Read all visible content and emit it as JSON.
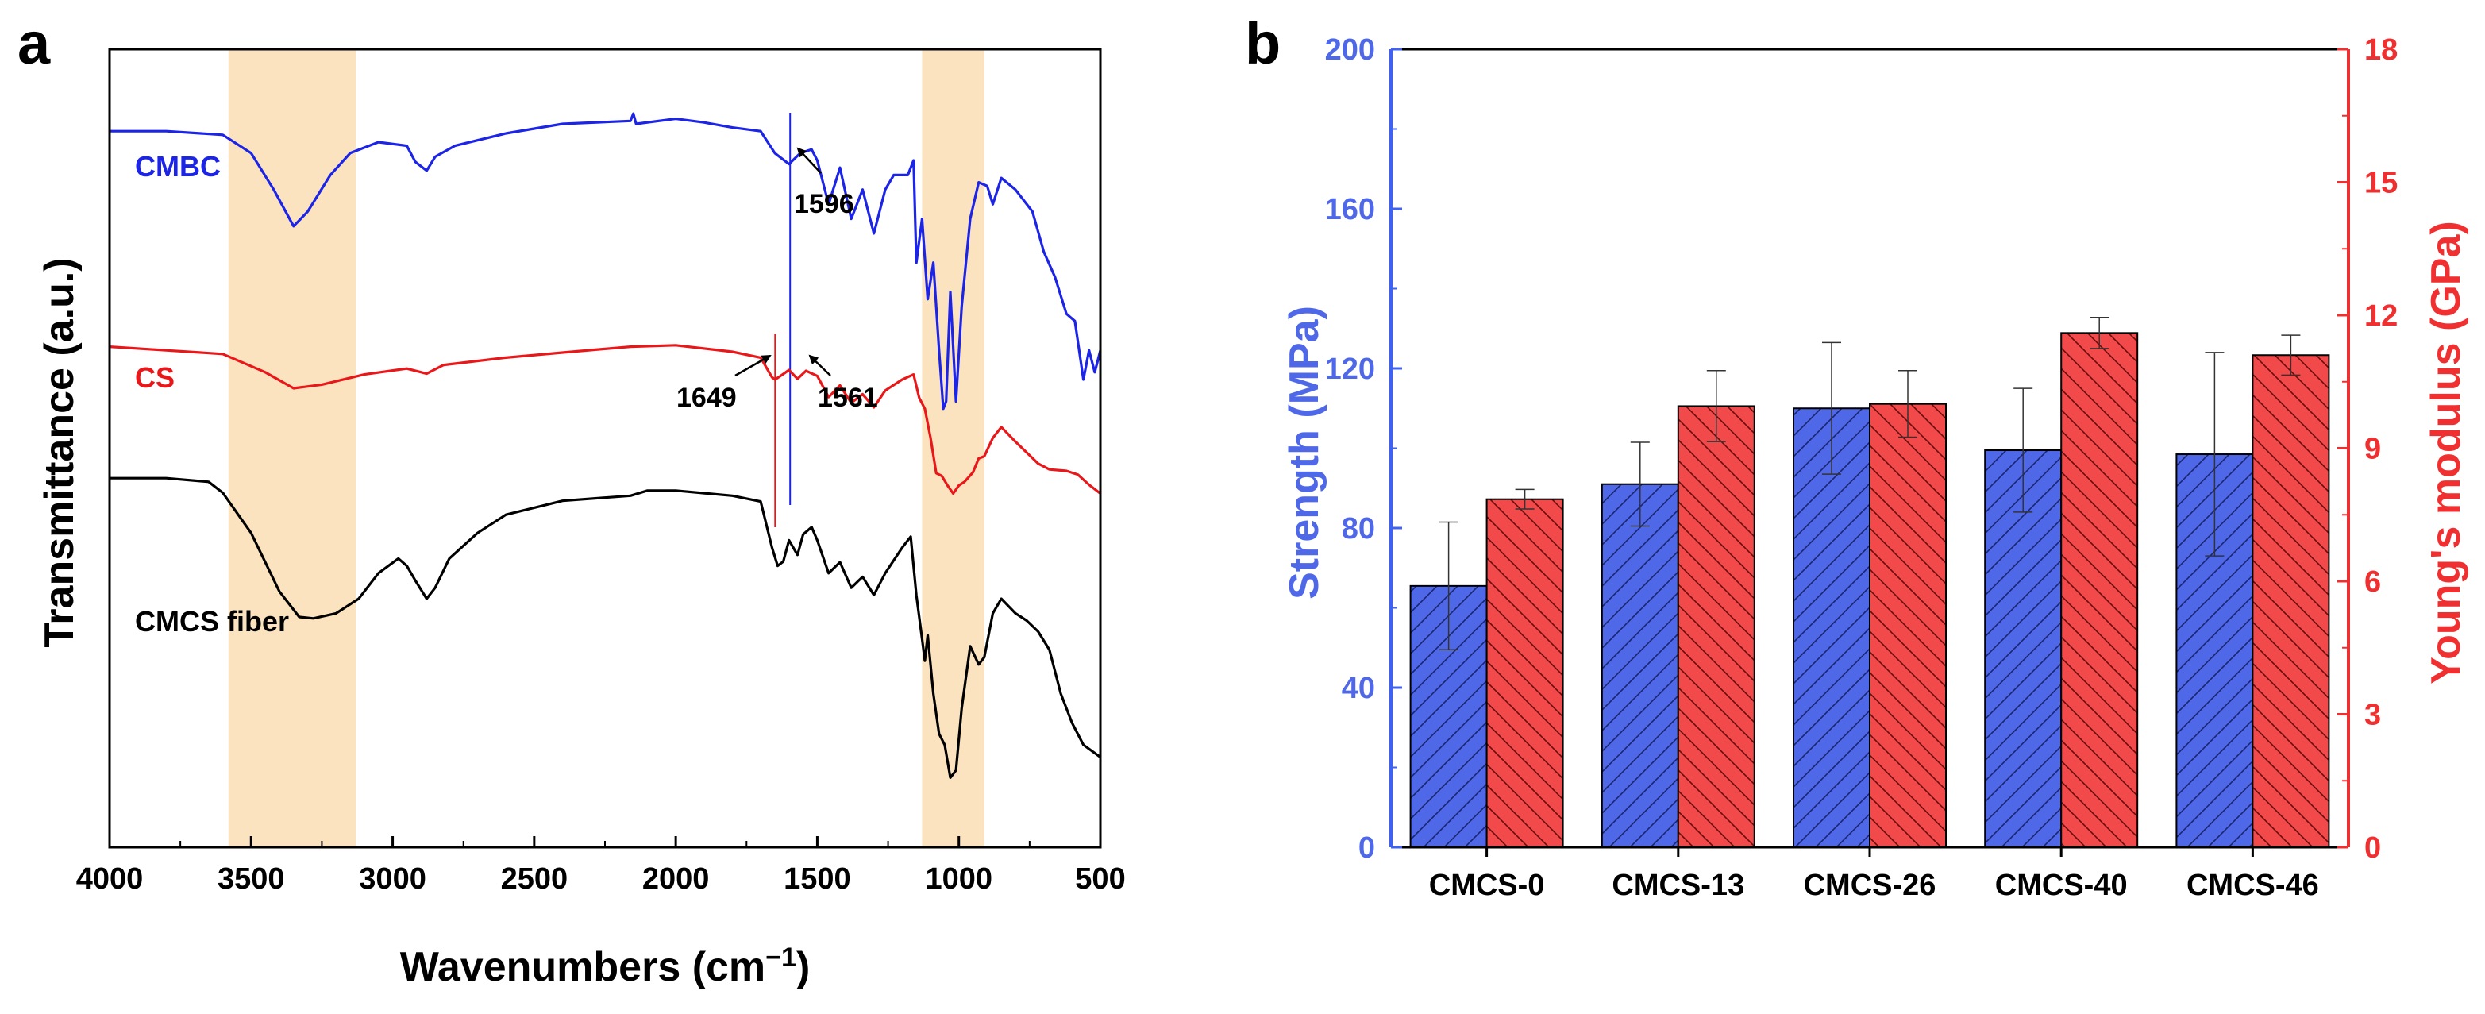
{
  "panels": {
    "a": "a",
    "b": "b"
  },
  "colors": {
    "blue_axis": "#3F63F0",
    "red_axis": "#F03030",
    "bar_blue": "#4F68E8",
    "bar_red": "#F24A4A",
    "band": "#FBE3BF",
    "line_cmbc": "#1C24E6",
    "line_cs": "#E8181A",
    "line_fiber": "#000000"
  },
  "chart_data": [
    {
      "type": "line",
      "title": "",
      "xlabel_main": "Wavenumbers (cm",
      "xlabel_sup": "−1",
      "xlabel_close": ")",
      "ylabel": "Transmittance (a.u.)",
      "xlim": [
        4000,
        500
      ],
      "x_ticks": [
        "4000",
        "3500",
        "3000",
        "2500",
        "2000",
        "1500",
        "1000",
        "500"
      ],
      "shaded_bands": [
        [
          3580,
          3130
        ],
        [
          1130,
          910
        ]
      ],
      "series": [
        {
          "name": "CMBC",
          "color": "#1C24E6",
          "points": [
            [
              4000,
              94
            ],
            [
              3800,
              94
            ],
            [
              3600,
              93.5
            ],
            [
              3500,
              91
            ],
            [
              3420,
              86
            ],
            [
              3350,
              81
            ],
            [
              3300,
              83
            ],
            [
              3220,
              88
            ],
            [
              3150,
              91
            ],
            [
              3050,
              92.5
            ],
            [
              2950,
              92
            ],
            [
              2920,
              89.8
            ],
            [
              2880,
              88.6
            ],
            [
              2850,
              90.5
            ],
            [
              2780,
              92
            ],
            [
              2600,
              93.7
            ],
            [
              2400,
              95
            ],
            [
              2160,
              95.4
            ],
            [
              2150,
              96.4
            ],
            [
              2140,
              95
            ],
            [
              2000,
              95.7
            ],
            [
              1900,
              95.2
            ],
            [
              1800,
              94.5
            ],
            [
              1700,
              94
            ],
            [
              1650,
              91
            ],
            [
              1600,
              89.5
            ],
            [
              1560,
              91
            ],
            [
              1520,
              91.5
            ],
            [
              1500,
              90
            ],
            [
              1460,
              84
            ],
            [
              1420,
              89
            ],
            [
              1380,
              82
            ],
            [
              1340,
              86
            ],
            [
              1300,
              80
            ],
            [
              1260,
              86
            ],
            [
              1230,
              88
            ],
            [
              1180,
              88
            ],
            [
              1160,
              90
            ],
            [
              1150,
              76
            ],
            [
              1130,
              82
            ],
            [
              1110,
              71
            ],
            [
              1090,
              76
            ],
            [
              1070,
              64
            ],
            [
              1055,
              56
            ],
            [
              1045,
              57
            ],
            [
              1030,
              72
            ],
            [
              1010,
              57
            ],
            [
              990,
              70
            ],
            [
              960,
              82
            ],
            [
              930,
              87
            ],
            [
              900,
              86.5
            ],
            [
              880,
              84
            ],
            [
              850,
              87.6
            ],
            [
              800,
              86
            ],
            [
              740,
              83
            ],
            [
              700,
              77.5
            ],
            [
              660,
              74
            ],
            [
              620,
              69
            ],
            [
              590,
              68
            ],
            [
              560,
              60
            ],
            [
              540,
              64
            ],
            [
              520,
              61
            ],
            [
              500,
              64
            ]
          ]
        },
        {
          "name": "CS",
          "color": "#E8181A",
          "points": [
            [
              4000,
              64.5
            ],
            [
              3800,
              64
            ],
            [
              3600,
              63.5
            ],
            [
              3450,
              61
            ],
            [
              3350,
              58.8
            ],
            [
              3250,
              59.3
            ],
            [
              3100,
              60.7
            ],
            [
              2950,
              61.5
            ],
            [
              2880,
              60.8
            ],
            [
              2820,
              62
            ],
            [
              2600,
              63
            ],
            [
              2400,
              63.7
            ],
            [
              2160,
              64.5
            ],
            [
              2000,
              64.7
            ],
            [
              1800,
              63.8
            ],
            [
              1700,
              63
            ],
            [
              1660,
              60.3
            ],
            [
              1649,
              60
            ],
            [
              1630,
              60.5
            ],
            [
              1600,
              61.3
            ],
            [
              1570,
              60.1
            ],
            [
              1540,
              61.2
            ],
            [
              1500,
              60.5
            ],
            [
              1460,
              57.6
            ],
            [
              1420,
              59.2
            ],
            [
              1380,
              56.8
            ],
            [
              1340,
              58
            ],
            [
              1300,
              56.2
            ],
            [
              1260,
              58.5
            ],
            [
              1200,
              60
            ],
            [
              1160,
              60.7
            ],
            [
              1140,
              57.5
            ],
            [
              1120,
              56
            ],
            [
              1100,
              52
            ],
            [
              1080,
              47.2
            ],
            [
              1060,
              46.8
            ],
            [
              1040,
              45.5
            ],
            [
              1020,
              44.4
            ],
            [
              1000,
              45.5
            ],
            [
              980,
              46
            ],
            [
              950,
              47.3
            ],
            [
              930,
              49.2
            ],
            [
              910,
              49.5
            ],
            [
              880,
              52
            ],
            [
              850,
              53.5
            ],
            [
              800,
              51.5
            ],
            [
              760,
              50
            ],
            [
              720,
              48.5
            ],
            [
              680,
              47.7
            ],
            [
              620,
              47.5
            ],
            [
              580,
              47
            ],
            [
              540,
              45.6
            ],
            [
              500,
              44.4
            ]
          ]
        },
        {
          "name": "CMCS fiber",
          "color": "#000000",
          "points": [
            [
              4000,
              46.5
            ],
            [
              3800,
              46.5
            ],
            [
              3650,
              46
            ],
            [
              3600,
              44.5
            ],
            [
              3500,
              39
            ],
            [
              3400,
              31
            ],
            [
              3330,
              27.5
            ],
            [
              3280,
              27.3
            ],
            [
              3200,
              28
            ],
            [
              3120,
              30
            ],
            [
              3050,
              33.5
            ],
            [
              2980,
              35.5
            ],
            [
              2950,
              34.5
            ],
            [
              2920,
              32.5
            ],
            [
              2880,
              30
            ],
            [
              2850,
              31.5
            ],
            [
              2800,
              35.5
            ],
            [
              2700,
              39
            ],
            [
              2600,
              41.5
            ],
            [
              2400,
              43.4
            ],
            [
              2160,
              44.1
            ],
            [
              2100,
              44.8
            ],
            [
              2000,
              44.8
            ],
            [
              1800,
              44.1
            ],
            [
              1700,
              43.3
            ],
            [
              1660,
              37
            ],
            [
              1640,
              34.5
            ],
            [
              1620,
              35.1
            ],
            [
              1600,
              38
            ],
            [
              1570,
              36
            ],
            [
              1550,
              38.8
            ],
            [
              1520,
              39.8
            ],
            [
              1500,
              38
            ],
            [
              1460,
              33.5
            ],
            [
              1420,
              35
            ],
            [
              1380,
              31.5
            ],
            [
              1340,
              33
            ],
            [
              1300,
              30.5
            ],
            [
              1260,
              33.5
            ],
            [
              1200,
              37
            ],
            [
              1170,
              38.5
            ],
            [
              1150,
              30.5
            ],
            [
              1130,
              24.5
            ],
            [
              1120,
              21.5
            ],
            [
              1110,
              25
            ],
            [
              1090,
              17
            ],
            [
              1070,
              11.5
            ],
            [
              1050,
              10
            ],
            [
              1030,
              5.5
            ],
            [
              1010,
              6.5
            ],
            [
              990,
              15
            ],
            [
              960,
              23.5
            ],
            [
              930,
              21
            ],
            [
              910,
              22
            ],
            [
              880,
              28
            ],
            [
              850,
              30
            ],
            [
              800,
              28
            ],
            [
              760,
              27
            ],
            [
              720,
              25.5
            ],
            [
              680,
              23
            ],
            [
              640,
              17
            ],
            [
              600,
              13
            ],
            [
              560,
              10
            ],
            [
              500,
              8.3
            ]
          ]
        }
      ],
      "series_labels": [
        "CMBC",
        "CS",
        "CMCS fiber"
      ],
      "annotations": [
        "1596",
        "1649",
        "1561"
      ],
      "marker_lines": [
        {
          "x": 1596,
          "color": "#1C24E6"
        },
        {
          "x": 1649,
          "color": "#E8181A"
        }
      ]
    },
    {
      "type": "bar",
      "title": "",
      "ylabel": "Strength (MPa)",
      "ylabel_right": "Young's modulus (GPa)",
      "categories": [
        "CMCS-0",
        "CMCS-13",
        "CMCS-26",
        "CMCS-40",
        "CMCS-46"
      ],
      "ylim": [
        0,
        200
      ],
      "ylim_right": [
        0,
        18
      ],
      "y_ticks": [
        "0",
        "40",
        "80",
        "120",
        "160",
        "200"
      ],
      "y_ticks_right": [
        "0",
        "3",
        "6",
        "9",
        "12",
        "15",
        "18"
      ],
      "series": [
        {
          "name": "Strength",
          "axis": "left",
          "color": "#4F68E8",
          "values": [
            65.5,
            91,
            110,
            99.5,
            98.5
          ],
          "errors": [
            16,
            10.5,
            16.5,
            15.5,
            25.5
          ]
        },
        {
          "name": "Young's modulus",
          "axis": "right",
          "color": "#F24A4A",
          "values": [
            7.85,
            9.95,
            10.0,
            11.6,
            11.1
          ],
          "errors": [
            0.22,
            0.8,
            0.75,
            0.35,
            0.45
          ]
        }
      ]
    }
  ]
}
